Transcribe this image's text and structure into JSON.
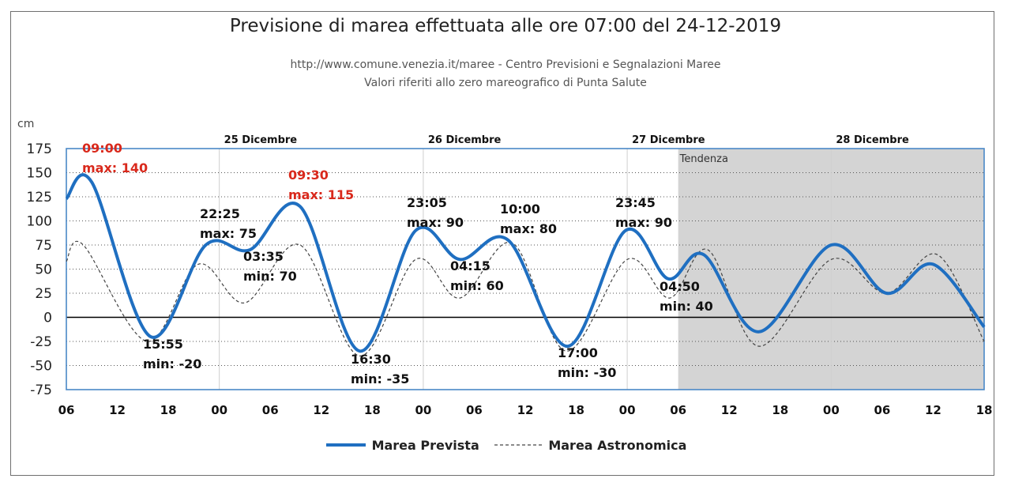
{
  "header": {
    "title": "Previsione di marea effettuata alle ore 07:00 del 24-12-2019",
    "subtitle1": "http://www.comune.venezia.it/maree - Centro Previsioni e Segnalazioni Maree",
    "subtitle2": "Valori riferiti allo zero mareografico di Punta Salute"
  },
  "legend": {
    "predicted": "Marea Prevista",
    "astronomical": "Marea Astronomica"
  },
  "colors": {
    "predicted": "#1f6fc1",
    "astronomical": "#444444",
    "max_label_red": "#d9291c",
    "trend_shade": "#d4d4d4",
    "frame": "#4a88c7"
  },
  "chart_data": {
    "type": "line",
    "ylabel": "cm",
    "ylim": [
      -75,
      175
    ],
    "yticks": [
      175,
      150,
      125,
      100,
      75,
      50,
      25,
      0,
      -25,
      -50,
      -75
    ],
    "x_unit": "hours from 24-12-2019 06:00",
    "xlim": [
      0,
      108
    ],
    "xticks": [
      {
        "x": 0,
        "label": "06"
      },
      {
        "x": 6,
        "label": "12"
      },
      {
        "x": 12,
        "label": "18"
      },
      {
        "x": 18,
        "label": "00"
      },
      {
        "x": 24,
        "label": "06"
      },
      {
        "x": 30,
        "label": "12"
      },
      {
        "x": 36,
        "label": "18"
      },
      {
        "x": 42,
        "label": "00"
      },
      {
        "x": 48,
        "label": "06"
      },
      {
        "x": 54,
        "label": "12"
      },
      {
        "x": 60,
        "label": "18"
      },
      {
        "x": 66,
        "label": "00"
      },
      {
        "x": 72,
        "label": "06"
      },
      {
        "x": 78,
        "label": "12"
      },
      {
        "x": 84,
        "label": "18"
      },
      {
        "x": 90,
        "label": "00"
      },
      {
        "x": 96,
        "label": "06"
      },
      {
        "x": 102,
        "label": "12"
      },
      {
        "x": 108,
        "label": "18"
      }
    ],
    "day_labels": [
      {
        "x": 18,
        "label": "25 Dicembre"
      },
      {
        "x": 42,
        "label": "26 Dicembre"
      },
      {
        "x": 66,
        "label": "27 Dicembre"
      },
      {
        "x": 90,
        "label": "28 Dicembre"
      }
    ],
    "trend": {
      "from": 72,
      "to": 108,
      "label": "Tendenza"
    },
    "series": [
      {
        "name": "Marea Prevista",
        "points": [
          [
            0,
            123
          ],
          [
            3,
            140
          ],
          [
            9.9,
            -20
          ],
          [
            16.4,
            75
          ],
          [
            21.6,
            70
          ],
          [
            27.5,
            115
          ],
          [
            34.5,
            -35
          ],
          [
            41.1,
            90
          ],
          [
            46.3,
            60
          ],
          [
            52,
            80
          ],
          [
            59,
            -30
          ],
          [
            65.8,
            90
          ],
          [
            70.8,
            40
          ],
          [
            75,
            65
          ],
          [
            81.5,
            -15
          ],
          [
            90,
            75
          ],
          [
            96.5,
            25
          ],
          [
            102,
            55
          ],
          [
            108,
            -10
          ]
        ]
      },
      {
        "name": "Marea Astronomica",
        "points": [
          [
            0,
            58
          ],
          [
            2,
            75
          ],
          [
            9.5,
            -25
          ],
          [
            15.5,
            55
          ],
          [
            21,
            15
          ],
          [
            27.5,
            75
          ],
          [
            34.5,
            -40
          ],
          [
            41.1,
            60
          ],
          [
            46.3,
            20
          ],
          [
            52.5,
            77
          ],
          [
            58.8,
            -35
          ],
          [
            66,
            60
          ],
          [
            71,
            20
          ],
          [
            75.5,
            70
          ],
          [
            81.5,
            -30
          ],
          [
            90,
            60
          ],
          [
            96.5,
            25
          ],
          [
            102.5,
            65
          ],
          [
            108,
            -25
          ]
        ]
      }
    ],
    "annotations": [
      {
        "x": 3,
        "y": 140,
        "time": "09:00",
        "text": "max: 140",
        "color": "red"
      },
      {
        "x": 9.9,
        "y": -20,
        "time": "15:55",
        "text": "min: -20",
        "color": "black"
      },
      {
        "x": 16.4,
        "y": 75,
        "time": "22:25",
        "text": "max: 75",
        "color": "black"
      },
      {
        "x": 21.6,
        "y": 70,
        "time": "03:35",
        "text": "min: 70",
        "color": "black"
      },
      {
        "x": 27.5,
        "y": 115,
        "time": "09:30",
        "text": "max: 115",
        "color": "red"
      },
      {
        "x": 34.5,
        "y": -35,
        "time": "16:30",
        "text": "min: -35",
        "color": "black"
      },
      {
        "x": 41.1,
        "y": 90,
        "time": "23:05",
        "text": "max: 90",
        "color": "black"
      },
      {
        "x": 46.3,
        "y": 60,
        "time": "04:15",
        "text": "min: 60",
        "color": "black"
      },
      {
        "x": 52,
        "y": 80,
        "time": "10:00",
        "text": "max: 80",
        "color": "black"
      },
      {
        "x": 59,
        "y": -30,
        "time": "17:00",
        "text": "min: -30",
        "color": "black"
      },
      {
        "x": 65.8,
        "y": 90,
        "time": "23:45",
        "text": "max: 90",
        "color": "black"
      },
      {
        "x": 70.8,
        "y": 40,
        "time": "04:50",
        "text": "min: 40",
        "color": "black"
      }
    ],
    "grid": true
  }
}
